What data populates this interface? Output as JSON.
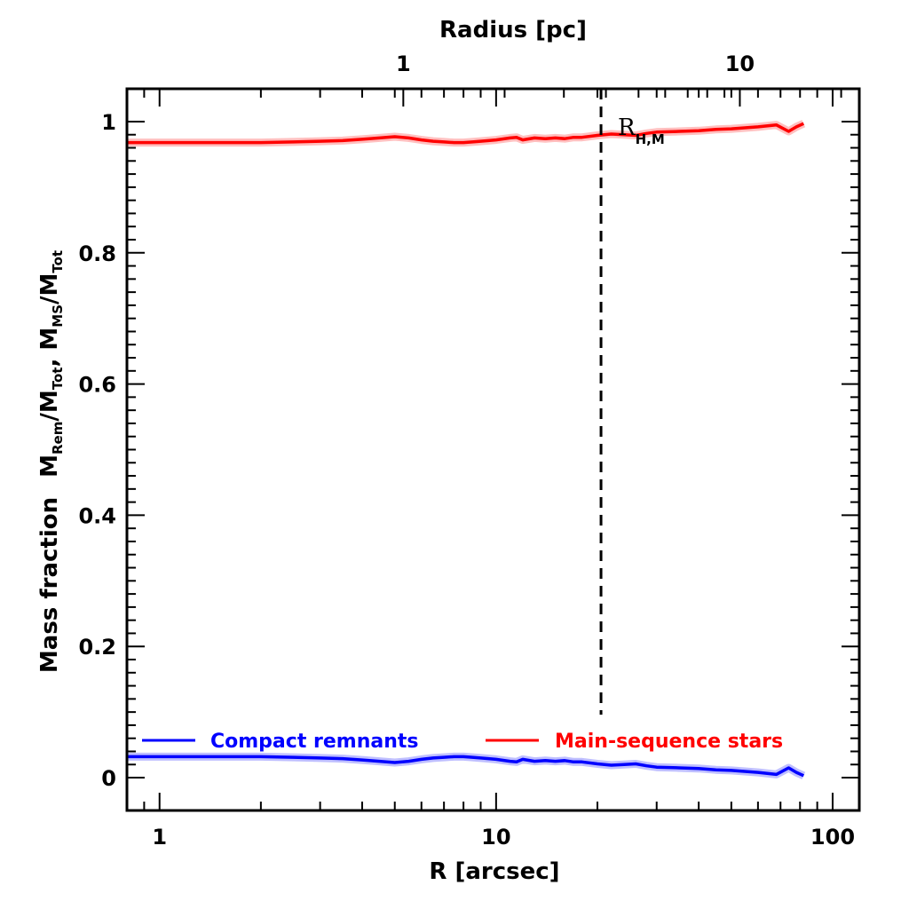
{
  "chart_data": {
    "type": "line",
    "xlabel": "R [arcsec]",
    "x2label": "Radius [pc]",
    "ylabel_main": "Mass fraction",
    "ylabel_ratio1": {
      "base": "M",
      "sub": "Rem",
      "sep": "/M",
      "sub2": "Tot"
    },
    "ylabel_ratio2": {
      "base": "M",
      "sub": "MS",
      "sep": "/M",
      "sub2": "Tot"
    },
    "xscale": "log",
    "xlim": [
      0.8,
      120
    ],
    "ylim": [
      -0.05,
      1.05
    ],
    "x2_ticks": [
      {
        "label": "1",
        "arcsec": 5.3
      },
      {
        "label": "10",
        "arcsec": 53
      }
    ],
    "x_ticks": [
      {
        "label": "1",
        "value": 1
      },
      {
        "label": "10",
        "value": 10
      },
      {
        "label": "100",
        "value": 100
      }
    ],
    "y_ticks": [
      {
        "label": "0",
        "value": 0
      },
      {
        "label": "0.2",
        "value": 0.2
      },
      {
        "label": "0.4",
        "value": 0.4
      },
      {
        "label": "0.6",
        "value": 0.6
      },
      {
        "label": "0.8",
        "value": 0.8
      },
      {
        "label": "1",
        "value": 1
      }
    ],
    "vline": {
      "x": 20.5,
      "style": "dashed"
    },
    "annotation": {
      "base": "R",
      "sub": "H,M",
      "x": 20.5,
      "y": 0.985
    },
    "legend": {
      "placement": "bottom"
    },
    "series": [
      {
        "name": "Compact remnants",
        "color": "#0000ff",
        "x": [
          0.8,
          1.0,
          1.5,
          2.0,
          2.5,
          3.0,
          3.5,
          4.0,
          4.5,
          5.0,
          5.5,
          6.0,
          6.5,
          7.0,
          7.5,
          8.0,
          8.5,
          9.0,
          9.5,
          10.0,
          11.0,
          11.5,
          12.0,
          13.0,
          14.0,
          15.0,
          16.0,
          17.0,
          18.0,
          20.0,
          22.0,
          24.0,
          26.0,
          28.0,
          30.0,
          35.0,
          40.0,
          45.0,
          50.0,
          60.0,
          68.0,
          74.0,
          78.0,
          82.0
        ],
        "y": [
          0.032,
          0.032,
          0.032,
          0.032,
          0.031,
          0.03,
          0.029,
          0.027,
          0.025,
          0.023,
          0.025,
          0.028,
          0.03,
          0.031,
          0.032,
          0.032,
          0.031,
          0.03,
          0.029,
          0.028,
          0.025,
          0.024,
          0.028,
          0.025,
          0.026,
          0.025,
          0.026,
          0.024,
          0.024,
          0.021,
          0.019,
          0.02,
          0.021,
          0.018,
          0.016,
          0.015,
          0.014,
          0.012,
          0.011,
          0.008,
          0.005,
          0.015,
          0.008,
          0.003
        ]
      },
      {
        "name": "Main-sequence stars",
        "color": "#ff0000",
        "x": [
          0.8,
          1.0,
          1.5,
          2.0,
          2.5,
          3.0,
          3.5,
          4.0,
          4.5,
          5.0,
          5.5,
          6.0,
          6.5,
          7.0,
          7.5,
          8.0,
          8.5,
          9.0,
          9.5,
          10.0,
          11.0,
          11.5,
          12.0,
          13.0,
          14.0,
          15.0,
          16.0,
          17.0,
          18.0,
          20.0,
          22.0,
          24.0,
          26.0,
          28.0,
          30.0,
          35.0,
          40.0,
          45.0,
          50.0,
          60.0,
          68.0,
          74.0,
          78.0,
          82.0
        ],
        "y": [
          0.968,
          0.968,
          0.968,
          0.968,
          0.969,
          0.97,
          0.971,
          0.973,
          0.975,
          0.977,
          0.975,
          0.972,
          0.97,
          0.969,
          0.968,
          0.968,
          0.969,
          0.97,
          0.971,
          0.972,
          0.975,
          0.976,
          0.972,
          0.975,
          0.974,
          0.975,
          0.974,
          0.976,
          0.976,
          0.979,
          0.981,
          0.98,
          0.979,
          0.982,
          0.984,
          0.985,
          0.986,
          0.988,
          0.989,
          0.992,
          0.995,
          0.985,
          0.992,
          0.997
        ]
      }
    ]
  }
}
